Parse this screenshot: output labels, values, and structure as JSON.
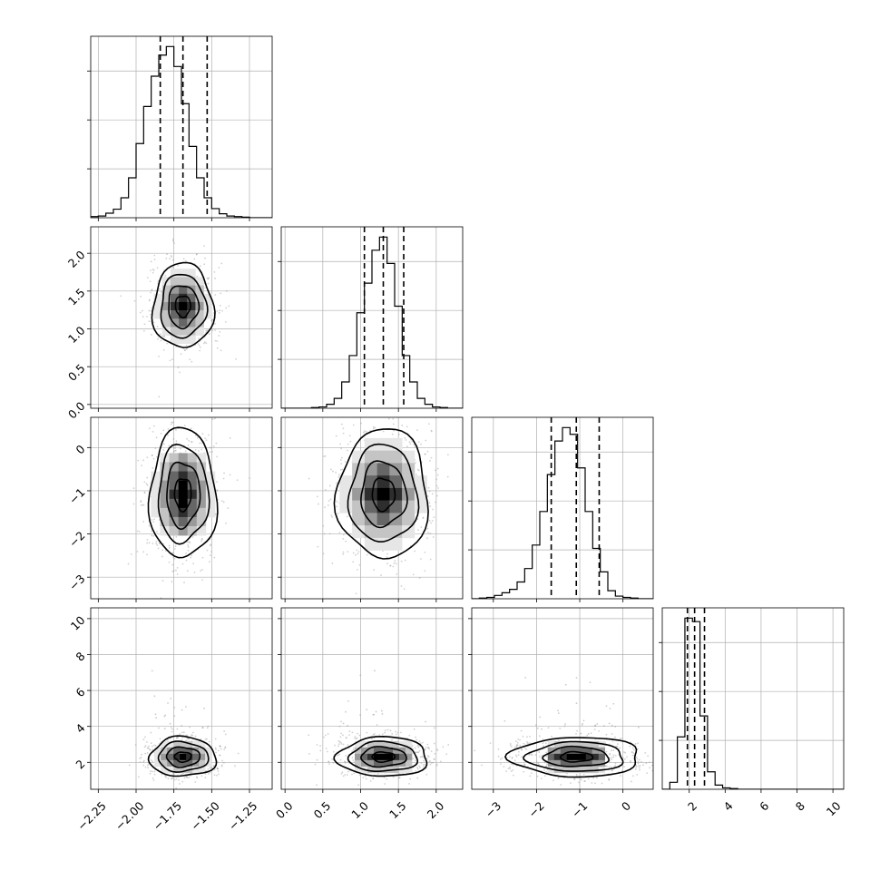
{
  "chart_data": {
    "type": "corner",
    "parameters": 4,
    "axes": [
      {
        "index": 0,
        "range": [
          -2.3,
          -1.1
        ],
        "ticks": [
          -2.25,
          -2.0,
          -1.75,
          -1.5,
          -1.25
        ],
        "tick_labels": [
          "−2.25",
          "−2.00",
          "−1.75",
          "−1.50",
          "−1.25"
        ],
        "quantiles": [
          -1.84,
          -1.69,
          -1.53
        ]
      },
      {
        "index": 1,
        "range": [
          -0.05,
          2.35
        ],
        "ticks": [
          0.0,
          0.5,
          1.0,
          1.5,
          2.0
        ],
        "tick_labels": [
          "0.0",
          "0.5",
          "1.0",
          "1.5",
          "2.0"
        ],
        "quantiles": [
          1.05,
          1.3,
          1.57
        ]
      },
      {
        "index": 2,
        "range": [
          -3.5,
          0.7
        ],
        "ticks": [
          -3,
          -2,
          -1,
          0
        ],
        "tick_labels": [
          "−3",
          "−2",
          "−1",
          "0"
        ],
        "quantiles": [
          -1.66,
          -1.08,
          -0.55
        ]
      },
      {
        "index": 3,
        "range": [
          0.5,
          10.6
        ],
        "ticks": [
          2,
          4,
          6,
          8,
          10
        ],
        "tick_labels": [
          "2",
          "4",
          "6",
          "8",
          "10"
        ],
        "quantiles": [
          1.9,
          2.3,
          2.85
        ]
      }
    ],
    "histograms": [
      {
        "param": 0,
        "bin_start": -2.3,
        "bin_width": 0.05,
        "counts": [
          2,
          3,
          8,
          15,
          35,
          70,
          130,
          195,
          248,
          285,
          300,
          265,
          200,
          125,
          70,
          35,
          16,
          7,
          3,
          2,
          1,
          0,
          0,
          0
        ]
      },
      {
        "param": 1,
        "bin_start": -0.05,
        "bin_width": 0.1,
        "counts": [
          0,
          0,
          0,
          0,
          1,
          2,
          6,
          15,
          40,
          80,
          145,
          190,
          240,
          260,
          220,
          155,
          80,
          40,
          15,
          6,
          2,
          1,
          0,
          0
        ]
      },
      {
        "param": 2,
        "bin_start": -3.5,
        "bin_width": 0.175,
        "counts": [
          0,
          1,
          2,
          5,
          9,
          14,
          25,
          45,
          80,
          130,
          185,
          235,
          255,
          245,
          195,
          130,
          75,
          40,
          12,
          4,
          2,
          1,
          0,
          0
        ]
      },
      {
        "param": 3,
        "bin_start": 0.5,
        "bin_width": 0.42,
        "counts": [
          0,
          10,
          75,
          245,
          240,
          105,
          25,
          6,
          2,
          1,
          0,
          0,
          0,
          0,
          0,
          0,
          0,
          0,
          0,
          0,
          0,
          0,
          0,
          0
        ]
      }
    ],
    "joint": [
      {
        "pair": [
          0,
          1
        ],
        "mean": [
          -1.69,
          1.3
        ],
        "std": [
          0.1,
          0.28
        ],
        "rho": 0.0
      },
      {
        "pair": [
          0,
          2
        ],
        "mean": [
          -1.69,
          -1.08
        ],
        "std": [
          0.11,
          0.75
        ],
        "rho": 0.05
      },
      {
        "pair": [
          1,
          2
        ],
        "mean": [
          1.3,
          -1.08
        ],
        "std": [
          0.3,
          0.75
        ],
        "rho": 0.0
      },
      {
        "pair": [
          0,
          3
        ],
        "mean": [
          -1.69,
          2.3
        ],
        "std": [
          0.11,
          0.55
        ],
        "rho": 0.0
      },
      {
        "pair": [
          1,
          3
        ],
        "mean": [
          1.3,
          2.3
        ],
        "std": [
          0.3,
          0.55
        ],
        "rho": 0.0
      },
      {
        "pair": [
          2,
          3
        ],
        "mean": [
          -1.08,
          2.3
        ],
        "std": [
          0.75,
          0.55
        ],
        "rho": 0.0
      }
    ],
    "contour_levels_sigma": [
      0.5,
      1.0,
      1.5,
      2.0
    ],
    "grid": true,
    "colors": {
      "line": "#000000",
      "scatter": "#9a9a9a",
      "grid": "#b0b0b0",
      "density": "#000000"
    }
  }
}
